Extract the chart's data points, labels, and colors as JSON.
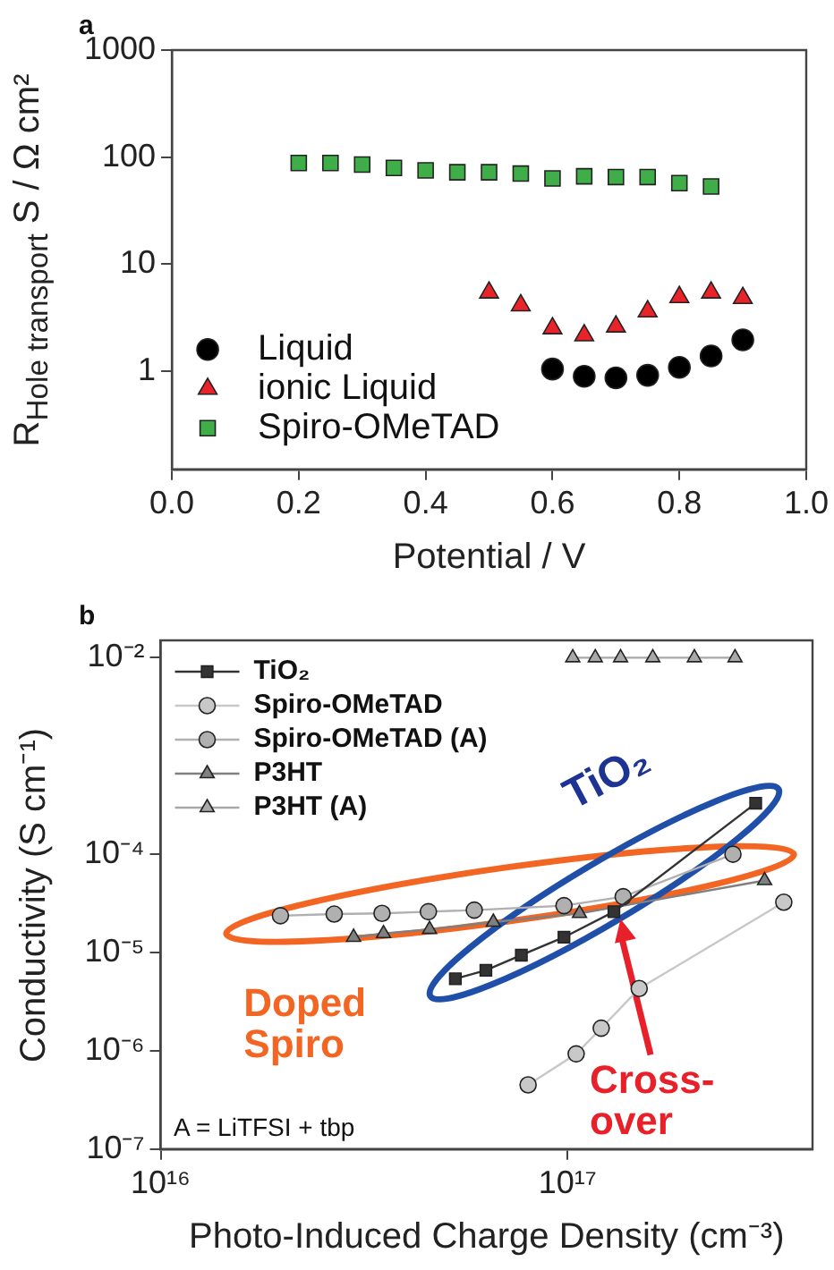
{
  "chart_data": [
    {
      "type": "scatter",
      "title": "a",
      "xlabel": "Potential / V",
      "ylabel": "R$_{Hole transport}$ S / Ω cm²",
      "xlim": [
        0,
        1
      ],
      "xticks": [
        {
          "value": 0,
          "label": "0.0"
        },
        {
          "value": 0.2,
          "label": "0.2"
        },
        {
          "value": 0.4,
          "label": "0.4"
        },
        {
          "value": 0.6,
          "label": "0.6"
        },
        {
          "value": 0.8,
          "label": "0.8"
        },
        {
          "value": 1,
          "label": "1.0"
        }
      ],
      "ylim": [
        0.12,
        1000
      ],
      "yticks": [
        1,
        10,
        100,
        1000
      ],
      "log": "y",
      "grid": false,
      "legend": "bottom left",
      "series": [
        {
          "name": "Liquid",
          "color": "#000000",
          "marker": "circle",
          "x": [
            0.6,
            0.65,
            0.7,
            0.75,
            0.8,
            0.85,
            0.9
          ],
          "values": [
            1.04,
            0.89,
            0.86,
            0.91,
            1.08,
            1.38,
            1.95
          ]
        },
        {
          "name": "ionic Liquid",
          "color": "#e8232a",
          "marker": "triangle",
          "x": [
            0.5,
            0.55,
            0.6,
            0.65,
            0.7,
            0.75,
            0.8,
            0.85,
            0.9
          ],
          "values": [
            5.4,
            4.1,
            2.5,
            2.15,
            2.6,
            3.6,
            4.9,
            5.4,
            4.8
          ]
        },
        {
          "name": "Spiro-OMeTAD",
          "color": "#3fae49",
          "marker": "square",
          "x": [
            0.2,
            0.25,
            0.3,
            0.35,
            0.4,
            0.45,
            0.5,
            0.55,
            0.6,
            0.65,
            0.7,
            0.75,
            0.8,
            0.85
          ],
          "values": [
            88,
            88,
            85,
            79,
            75,
            72,
            72,
            70,
            63,
            66,
            65,
            65,
            57,
            53
          ]
        }
      ]
    },
    {
      "type": "line",
      "title": "b",
      "xlabel": "Photo-Induced Charge Density (cm⁻³)",
      "ylabel": "Conductivity (S cm⁻¹)",
      "xlim": [
        1e+16,
        4e+17
      ],
      "xticks": [
        {
          "value": 1e+16,
          "label": "10¹⁶"
        },
        {
          "value": 1e+17,
          "label": "10¹⁷"
        }
      ],
      "ylim": [
        1e-07,
        0.015
      ],
      "yticks": [
        {
          "value": 1e-07,
          "label": "10⁻⁷"
        },
        {
          "value": 1e-06,
          "label": "10⁻⁶"
        },
        {
          "value": 1e-05,
          "label": "10⁻⁵"
        },
        {
          "value": 0.0001,
          "label": "10⁻⁴"
        },
        {
          "value": 0.01,
          "label": "10⁻²"
        }
      ],
      "log": "xy",
      "grid": false,
      "legend": "top left",
      "annotations": [
        "A = LiTFSI + tbp",
        "TiO₂",
        "Doped Spiro",
        "Cross-over"
      ],
      "series": [
        {
          "name": "TiO₂",
          "color": "#333333",
          "marker": "square",
          "x": [
            5.3e+16,
            6.3e+16,
            7.7e+16,
            9.8e+16,
            1.3e+17,
            2.9e+17
          ],
          "values": [
            5.4e-06,
            6.6e-06,
            9.4e-06,
            1.43e-05,
            2.6e-05,
            0.00033
          ]
        },
        {
          "name": "Spiro-OMeTAD",
          "color": "#c8c8c8",
          "marker": "circle",
          "x": [
            8e+16,
            1.05e+17,
            1.21e+17,
            1.5e+17,
            3.4e+17
          ],
          "values": [
            4.5e-07,
            9.3e-07,
            1.7e-06,
            4.3e-06,
            3.25e-05
          ]
        },
        {
          "name": "Spiro-OMeTAD (A)",
          "color": "#b0b0b0",
          "marker": "circle",
          "x": [
            1.97e+16,
            2.67e+16,
            3.5e+16,
            4.55e+16,
            5.9e+16,
            9.8e+16,
            1.37e+17,
            2.55e+17
          ],
          "values": [
            2.37e-05,
            2.46e-05,
            2.5e-05,
            2.6e-05,
            2.7e-05,
            3e-05,
            3.7e-05,
            0.0001
          ]
        },
        {
          "name": "P3HT",
          "color": "#808080",
          "marker": "triangle",
          "x": [
            2.98e+16,
            3.53e+16,
            4.58e+16,
            6.57e+16,
            1.07e+17,
            3.05e+17
          ],
          "values": [
            1.43e-05,
            1.56e-05,
            1.72e-05,
            2.04e-05,
            2.5e-05,
            5.4e-05
          ]
        },
        {
          "name": "P3HT (A)",
          "color": "#a8a8a8",
          "marker": "triangle",
          "x": [
            1.03e+17,
            1.17e+17,
            1.35e+17,
            1.62e+17,
            2.05e+17,
            2.58e+17
          ],
          "values": [
            0.01,
            0.01,
            0.01,
            0.01,
            0.01,
            0.01
          ]
        }
      ]
    }
  ]
}
